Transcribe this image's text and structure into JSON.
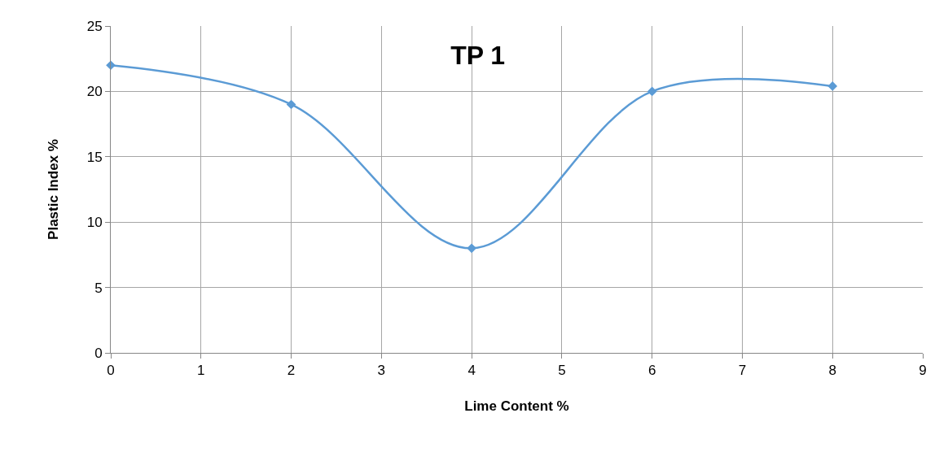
{
  "chart_data": {
    "type": "line",
    "title": "TP 1",
    "xlabel": "Lime Content %",
    "ylabel": "Plastic Index %",
    "x": [
      0,
      2,
      4,
      6,
      8
    ],
    "series": [
      {
        "color": "#5b9bd5",
        "values": [
          22,
          19,
          8,
          20,
          20.4
        ]
      }
    ],
    "xlim": [
      0,
      9
    ],
    "xticks": [
      0,
      1,
      2,
      3,
      4,
      5,
      6,
      7,
      8,
      9
    ],
    "ylim": [
      0,
      25
    ],
    "yticks": [
      0,
      5,
      10,
      15,
      20,
      25
    ],
    "grid": true,
    "marker": "diamond",
    "line_style": "solid"
  }
}
